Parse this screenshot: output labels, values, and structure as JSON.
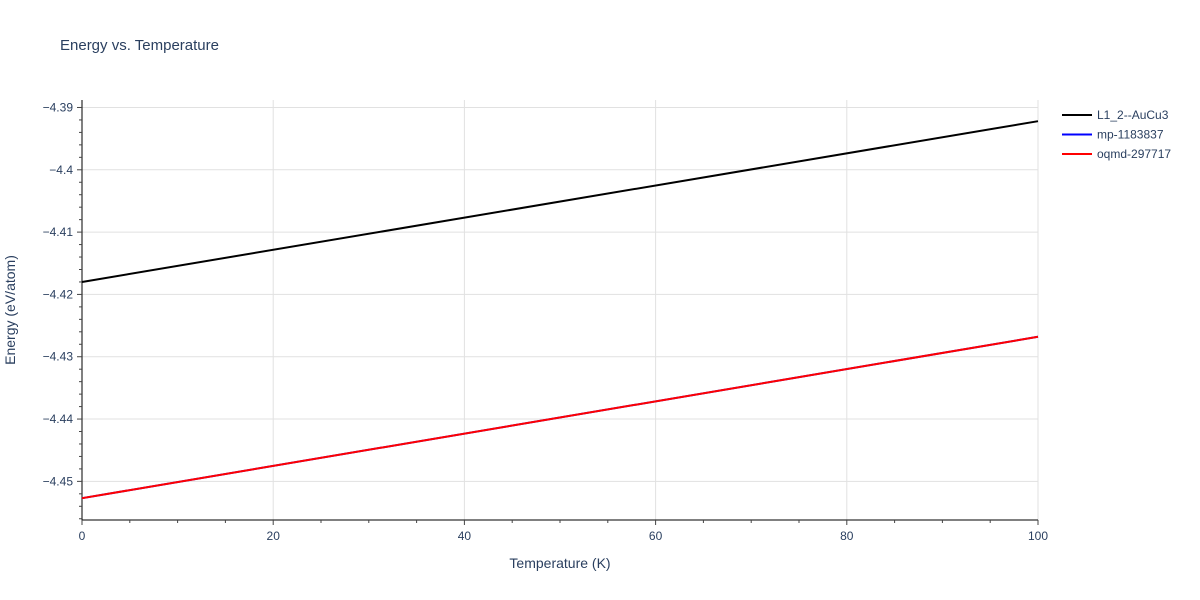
{
  "chart_data": {
    "type": "line",
    "title": "Energy vs. Temperature",
    "xlabel": "Temperature (K)",
    "ylabel": "Energy (eV/atom)",
    "xlim": [
      0,
      100
    ],
    "ylim": [
      -4.4562,
      -4.3888
    ],
    "x_ticks": [
      0,
      20,
      40,
      60,
      80,
      100
    ],
    "x_tick_labels": [
      "0",
      "20",
      "40",
      "60",
      "80",
      "100"
    ],
    "y_ticks": [
      -4.45,
      -4.44,
      -4.43,
      -4.42,
      -4.41,
      -4.4,
      -4.39
    ],
    "y_tick_labels": [
      "−4.45",
      "−4.44",
      "−4.43",
      "−4.42",
      "−4.41",
      "−4.4",
      "−4.39"
    ],
    "grid": true,
    "legend_position": "top-right",
    "series": [
      {
        "name": "L1_2--AuCu3",
        "color": "#000000",
        "x": [
          0,
          100
        ],
        "y": [
          -4.418,
          -4.3922
        ]
      },
      {
        "name": "mp-1183837",
        "color": "#0000ff",
        "x": [
          0,
          100
        ],
        "y": [
          -4.4527,
          -4.4268
        ]
      },
      {
        "name": "oqmd-297717",
        "color": "#ff0000",
        "x": [
          0,
          100
        ],
        "y": [
          -4.4527,
          -4.4268
        ]
      }
    ]
  }
}
